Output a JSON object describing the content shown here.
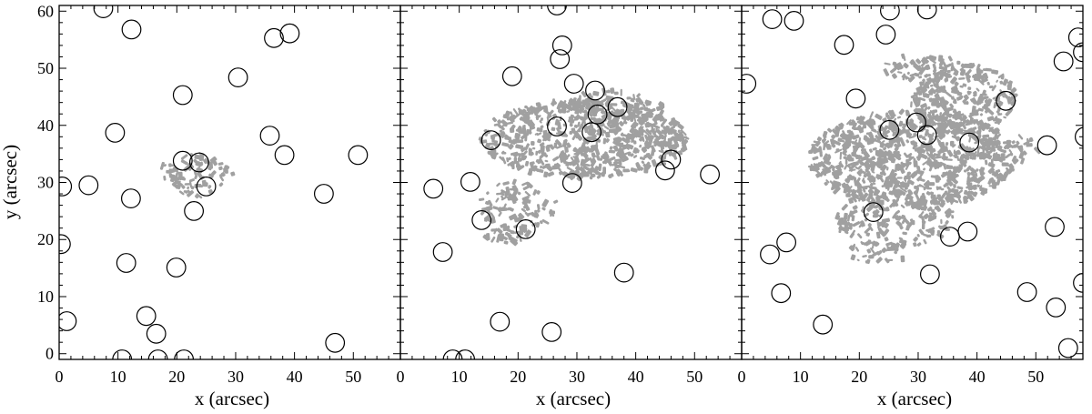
{
  "chart_data": {
    "type": "scatter",
    "ylabel": "y (arcsec)",
    "xlim": [
      0,
      58
    ],
    "ylim": [
      -1,
      61
    ],
    "x_ticks": [
      0,
      10,
      20,
      30,
      40,
      50
    ],
    "y_ticks": [
      0,
      10,
      20,
      30,
      40,
      50,
      60
    ],
    "colors": {
      "patch": "#a0a0a0",
      "circle": "#000000",
      "axes": "#000000"
    },
    "panels": [
      {
        "xlabel": "x (arcsec)",
        "circles": [
          [
            7.5,
            60.5
          ],
          [
            12.3,
            56.8
          ],
          [
            21,
            45.3
          ],
          [
            30.4,
            48.4
          ],
          [
            36.5,
            55.3
          ],
          [
            39.2,
            56.1
          ],
          [
            9.5,
            38.7
          ],
          [
            35.8,
            38.2
          ],
          [
            21,
            33.8
          ],
          [
            23.8,
            33.5
          ],
          [
            38.3,
            34.8
          ],
          [
            50.8,
            34.8
          ],
          [
            0.5,
            29.3
          ],
          [
            5.0,
            29.5
          ],
          [
            12.2,
            27.2
          ],
          [
            25.0,
            29.3
          ],
          [
            45.0,
            28.0
          ],
          [
            22.9,
            25.0
          ],
          [
            0.3,
            19.2
          ],
          [
            11.4,
            15.9
          ],
          [
            19.9,
            15.1
          ],
          [
            14.8,
            6.6
          ],
          [
            1.3,
            5.7
          ],
          [
            16.5,
            3.5
          ],
          [
            46.9,
            1.9
          ],
          [
            10.7,
            -1.0
          ],
          [
            16.8,
            -1.0
          ],
          [
            21.2,
            -1.0
          ]
        ],
        "patches": [
          {
            "cx": 23.3,
            "cy": 31.9,
            "rx": 6.3,
            "ry": 3.2,
            "n": 70,
            "seed": 1
          },
          {
            "cx": 23.0,
            "cy": 28.9,
            "rx": 3.0,
            "ry": 1.6,
            "n": 15,
            "seed": 2
          }
        ]
      },
      {
        "xlabel": "x (arcsec)",
        "circles": [
          [
            26.6,
            61.0
          ],
          [
            27.5,
            54.0
          ],
          [
            27.1,
            51.6
          ],
          [
            19.0,
            48.6
          ],
          [
            29.5,
            47.3
          ],
          [
            33.1,
            46.1
          ],
          [
            36.9,
            43.2
          ],
          [
            33.5,
            41.9
          ],
          [
            26.6,
            39.8
          ],
          [
            32.5,
            38.8
          ],
          [
            15.4,
            37.4
          ],
          [
            46.0,
            34.0
          ],
          [
            45.0,
            32.1
          ],
          [
            52.6,
            31.4
          ],
          [
            11.9,
            30.1
          ],
          [
            5.6,
            28.9
          ],
          [
            29.2,
            29.9
          ],
          [
            13.8,
            23.4
          ],
          [
            21.3,
            21.8
          ],
          [
            7.2,
            17.8
          ],
          [
            38.0,
            14.2
          ],
          [
            16.9,
            5.6
          ],
          [
            25.7,
            3.8
          ],
          [
            8.9,
            -1.0
          ],
          [
            11.0,
            -1.0
          ]
        ],
        "patches": [
          {
            "cx": 31.2,
            "cy": 37.6,
            "rx": 17.6,
            "ry": 6.8,
            "n": 650,
            "seed": 3
          },
          {
            "cx": 36.2,
            "cy": 43.1,
            "rx": 8.4,
            "ry": 3.0,
            "n": 100,
            "seed": 4
          },
          {
            "cx": 20.0,
            "cy": 25.9,
            "rx": 6.5,
            "ry": 4.4,
            "n": 90,
            "seed": 5
          },
          {
            "cx": 18.1,
            "cy": 20.9,
            "rx": 4.0,
            "ry": 1.6,
            "n": 30,
            "seed": 6
          },
          {
            "cx": 42.5,
            "cy": 37.8,
            "rx": 4.5,
            "ry": 4.5,
            "n": 40,
            "seed": 7
          }
        ]
      },
      {
        "xlabel": "x (arcsec)",
        "circles": [
          [
            0.8,
            47.3
          ],
          [
            5.2,
            58.6
          ],
          [
            8.9,
            58.3
          ],
          [
            4.8,
            17.4
          ],
          [
            6.7,
            10.6
          ],
          [
            7.6,
            19.5
          ],
          [
            13.8,
            5.1
          ],
          [
            17.4,
            54.1
          ],
          [
            19.4,
            44.7
          ],
          [
            22.4,
            24.8
          ],
          [
            24.5,
            55.9
          ],
          [
            25.1,
            39.2
          ],
          [
            25.2,
            60.1
          ],
          [
            29.7,
            40.5
          ],
          [
            31.5,
            38.3
          ],
          [
            31.5,
            60.3
          ],
          [
            32.0,
            13.9
          ],
          [
            35.4,
            20.5
          ],
          [
            38.4,
            21.4
          ],
          [
            38.7,
            37.0
          ],
          [
            44.9,
            44.3
          ],
          [
            48.5,
            10.8
          ],
          [
            51.9,
            36.5
          ],
          [
            53.2,
            22.2
          ],
          [
            53.4,
            8.1
          ],
          [
            54.7,
            51.2
          ],
          [
            55.5,
            1.0
          ],
          [
            57.2,
            55.4
          ],
          [
            58.0,
            12.4
          ],
          [
            58.0,
            52.8
          ],
          [
            58.3,
            38.0
          ]
        ],
        "patches": [
          {
            "cx": 29.0,
            "cy": 34.2,
            "rx": 17.5,
            "ry": 8.5,
            "n": 900,
            "seed": 8
          },
          {
            "cx": 37.5,
            "cy": 44.7,
            "rx": 9.0,
            "ry": 6.0,
            "n": 260,
            "seed": 9
          },
          {
            "cx": 26.0,
            "cy": 23.5,
            "rx": 10.0,
            "ry": 5.0,
            "n": 180,
            "seed": 10
          },
          {
            "cx": 48.0,
            "cy": 35.6,
            "rx": 3.0,
            "ry": 2.5,
            "n": 20,
            "seed": 11
          },
          {
            "cx": 31.0,
            "cy": 50.0,
            "rx": 7.0,
            "ry": 2.5,
            "n": 60,
            "seed": 12
          },
          {
            "cx": 23.0,
            "cy": 17.5,
            "rx": 5.0,
            "ry": 2.2,
            "n": 30,
            "seed": 13
          }
        ]
      }
    ]
  }
}
